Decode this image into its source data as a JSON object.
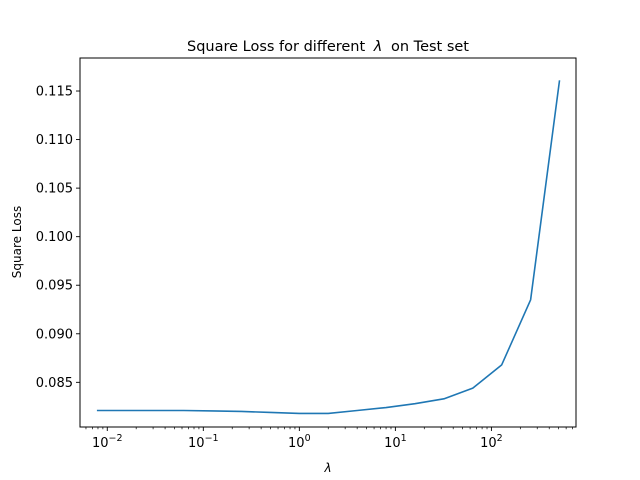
{
  "chart_data": {
    "type": "line",
    "title_main": "Square Loss for different",
    "title_symbol": "λ",
    "title_rest": "on Test set",
    "xlabel": "λ",
    "ylabel": "Square Loss",
    "x_scale": "log",
    "xlim": [
      0.0052,
      760
    ],
    "ylim": [
      0.0804,
      0.1184
    ],
    "x_ticks": [
      {
        "value": 0.01,
        "base": "10",
        "exp": "−2"
      },
      {
        "value": 0.1,
        "base": "10",
        "exp": "−1"
      },
      {
        "value": 1,
        "base": "10",
        "exp": "0"
      },
      {
        "value": 10,
        "base": "10",
        "exp": "1"
      },
      {
        "value": 100,
        "base": "10",
        "exp": "2"
      }
    ],
    "y_ticks": [
      {
        "value": 0.085,
        "label": "0.085"
      },
      {
        "value": 0.09,
        "label": "0.090"
      },
      {
        "value": 0.095,
        "label": "0.095"
      },
      {
        "value": 0.1,
        "label": "0.100"
      },
      {
        "value": 0.105,
        "label": "0.105"
      },
      {
        "value": 0.11,
        "label": "0.110"
      },
      {
        "value": 0.115,
        "label": "0.115"
      }
    ],
    "grid": false,
    "series": [
      {
        "color": "#1f77b4",
        "x": [
          0.0078,
          0.0156,
          0.0313,
          0.0625,
          0.125,
          0.25,
          0.5,
          1,
          2,
          4,
          8,
          16,
          32,
          64,
          128,
          256,
          512
        ],
        "y": [
          0.0821,
          0.0821,
          0.0821,
          0.0821,
          0.08205,
          0.082,
          0.0819,
          0.0818,
          0.0818,
          0.0821,
          0.0824,
          0.0828,
          0.0833,
          0.0844,
          0.0868,
          0.0935,
          0.1161
        ]
      }
    ]
  }
}
